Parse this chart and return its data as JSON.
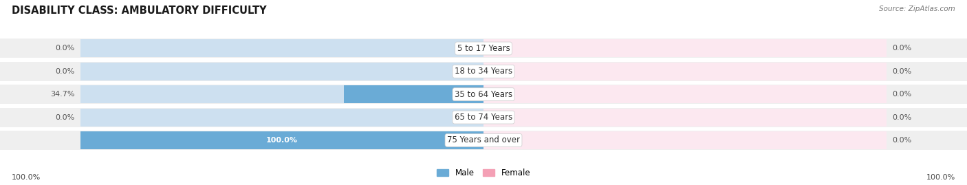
{
  "title": "DISABILITY CLASS: AMBULATORY DIFFICULTY",
  "source": "Source: ZipAtlas.com",
  "categories": [
    "5 to 17 Years",
    "18 to 34 Years",
    "35 to 64 Years",
    "65 to 74 Years",
    "75 Years and over"
  ],
  "male_values": [
    0.0,
    0.0,
    34.7,
    0.0,
    100.0
  ],
  "female_values": [
    0.0,
    0.0,
    0.0,
    0.0,
    0.0
  ],
  "male_color": "#6aabd6",
  "female_color": "#f4a0b5",
  "male_label": "Male",
  "female_label": "Female",
  "male_light_color": "#cde0f0",
  "female_light_color": "#fce8f0",
  "row_bg": "#efefef",
  "max_val": 100.0,
  "legend_bottom_left": "100.0%",
  "legend_bottom_right": "100.0%",
  "title_fontsize": 10.5,
  "cat_fontsize": 8.5,
  "value_fontsize": 8.0,
  "source_fontsize": 7.5,
  "legend_fontsize": 8.5
}
